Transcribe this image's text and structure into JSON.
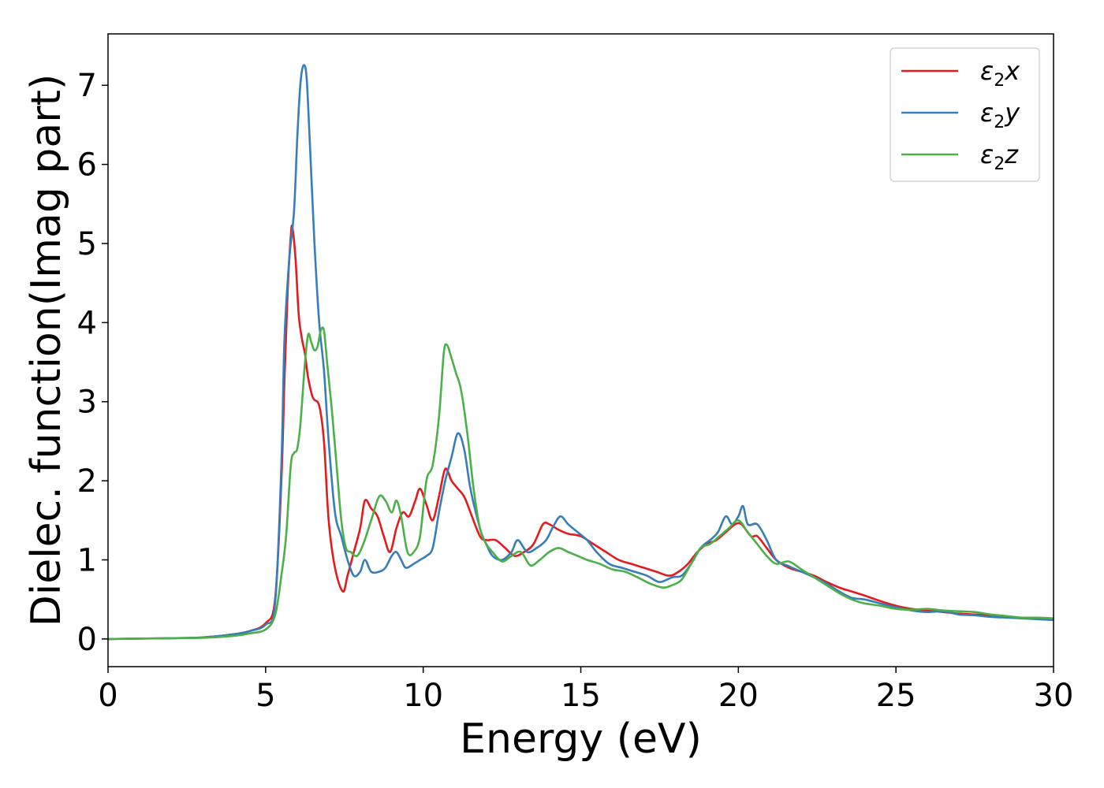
{
  "chart_data": {
    "type": "line",
    "title": "",
    "xlabel": "Energy (eV)",
    "ylabel": "Dielec. function(Imag part)",
    "xlim": [
      0,
      30
    ],
    "ylim": [
      -0.35,
      7.65
    ],
    "grid": false,
    "legend_position": "top-right",
    "x_ticks": [
      0,
      5,
      10,
      15,
      20,
      25,
      30
    ],
    "y_ticks": [
      0,
      1,
      2,
      3,
      4,
      5,
      6,
      7
    ],
    "series": [
      {
        "name": "ε2x",
        "legend": {
          "symbol": "ε",
          "sub": "2",
          "var": "x"
        },
        "color": "#e41a1c",
        "points": [
          [
            0,
            0.0
          ],
          [
            2,
            0.01
          ],
          [
            3,
            0.02
          ],
          [
            4,
            0.06
          ],
          [
            4.5,
            0.1
          ],
          [
            5,
            0.2
          ],
          [
            5.3,
            0.5
          ],
          [
            5.5,
            2.0
          ],
          [
            5.6,
            3.3
          ],
          [
            5.7,
            4.4
          ],
          [
            5.8,
            5.1
          ],
          [
            5.85,
            5.2
          ],
          [
            5.95,
            4.8
          ],
          [
            6.05,
            4.1
          ],
          [
            6.15,
            3.8
          ],
          [
            6.25,
            3.6
          ],
          [
            6.35,
            3.3
          ],
          [
            6.5,
            3.05
          ],
          [
            6.7,
            2.95
          ],
          [
            6.85,
            2.5
          ],
          [
            7.0,
            1.5
          ],
          [
            7.2,
            0.9
          ],
          [
            7.45,
            0.6
          ],
          [
            7.6,
            0.8
          ],
          [
            7.8,
            1.1
          ],
          [
            8.0,
            1.4
          ],
          [
            8.15,
            1.75
          ],
          [
            8.35,
            1.65
          ],
          [
            8.55,
            1.55
          ],
          [
            8.75,
            1.3
          ],
          [
            8.95,
            1.1
          ],
          [
            9.15,
            1.4
          ],
          [
            9.35,
            1.6
          ],
          [
            9.55,
            1.55
          ],
          [
            9.75,
            1.75
          ],
          [
            9.9,
            1.9
          ],
          [
            10.1,
            1.7
          ],
          [
            10.3,
            1.5
          ],
          [
            10.5,
            1.8
          ],
          [
            10.7,
            2.15
          ],
          [
            10.9,
            2.0
          ],
          [
            11.1,
            1.9
          ],
          [
            11.3,
            1.8
          ],
          [
            11.5,
            1.6
          ],
          [
            11.8,
            1.3
          ],
          [
            12.0,
            1.25
          ],
          [
            12.3,
            1.25
          ],
          [
            12.6,
            1.15
          ],
          [
            12.9,
            1.05
          ],
          [
            13.2,
            1.1
          ],
          [
            13.5,
            1.2
          ],
          [
            13.8,
            1.45
          ],
          [
            14.0,
            1.45
          ],
          [
            14.3,
            1.38
          ],
          [
            14.6,
            1.33
          ],
          [
            15.0,
            1.3
          ],
          [
            15.4,
            1.2
          ],
          [
            15.8,
            1.1
          ],
          [
            16.2,
            1.0
          ],
          [
            16.6,
            0.95
          ],
          [
            17.0,
            0.9
          ],
          [
            17.4,
            0.85
          ],
          [
            17.8,
            0.8
          ],
          [
            18.1,
            0.85
          ],
          [
            18.4,
            0.95
          ],
          [
            18.7,
            1.1
          ],
          [
            19.0,
            1.2
          ],
          [
            19.3,
            1.25
          ],
          [
            19.6,
            1.35
          ],
          [
            19.9,
            1.45
          ],
          [
            20.1,
            1.45
          ],
          [
            20.4,
            1.3
          ],
          [
            20.6,
            1.3
          ],
          [
            20.9,
            1.15
          ],
          [
            21.2,
            1.0
          ],
          [
            21.6,
            0.9
          ],
          [
            22.0,
            0.85
          ],
          [
            22.4,
            0.8
          ],
          [
            22.8,
            0.72
          ],
          [
            23.2,
            0.65
          ],
          [
            23.6,
            0.6
          ],
          [
            24.0,
            0.55
          ],
          [
            24.5,
            0.48
          ],
          [
            25.0,
            0.42
          ],
          [
            25.5,
            0.38
          ],
          [
            26.0,
            0.36
          ],
          [
            26.5,
            0.34
          ],
          [
            27.0,
            0.32
          ],
          [
            27.5,
            0.31
          ],
          [
            28.0,
            0.3
          ],
          [
            28.5,
            0.28
          ],
          [
            29.0,
            0.27
          ],
          [
            29.5,
            0.26
          ],
          [
            30.0,
            0.25
          ]
        ]
      },
      {
        "name": "ε2y",
        "legend": {
          "symbol": "ε",
          "sub": "2",
          "var": "y"
        },
        "color": "#377eb8",
        "points": [
          [
            0,
            0.0
          ],
          [
            2,
            0.01
          ],
          [
            3,
            0.02
          ],
          [
            4,
            0.06
          ],
          [
            4.5,
            0.1
          ],
          [
            5,
            0.18
          ],
          [
            5.3,
            0.45
          ],
          [
            5.5,
            2.2
          ],
          [
            5.6,
            3.8
          ],
          [
            5.75,
            4.8
          ],
          [
            5.9,
            5.4
          ],
          [
            6.0,
            6.3
          ],
          [
            6.1,
            7.0
          ],
          [
            6.2,
            7.25
          ],
          [
            6.3,
            7.1
          ],
          [
            6.4,
            6.3
          ],
          [
            6.55,
            5.0
          ],
          [
            6.7,
            4.0
          ],
          [
            6.85,
            3.4
          ],
          [
            7.0,
            2.5
          ],
          [
            7.2,
            1.6
          ],
          [
            7.4,
            1.3
          ],
          [
            7.6,
            1.0
          ],
          [
            7.8,
            0.8
          ],
          [
            8.0,
            0.85
          ],
          [
            8.15,
            1.0
          ],
          [
            8.35,
            0.85
          ],
          [
            8.6,
            0.85
          ],
          [
            8.8,
            0.9
          ],
          [
            9.0,
            1.05
          ],
          [
            9.15,
            1.1
          ],
          [
            9.3,
            1.0
          ],
          [
            9.45,
            0.9
          ],
          [
            9.7,
            0.95
          ],
          [
            9.9,
            1.0
          ],
          [
            10.1,
            1.05
          ],
          [
            10.3,
            1.15
          ],
          [
            10.5,
            1.6
          ],
          [
            10.7,
            2.0
          ],
          [
            10.9,
            2.3
          ],
          [
            11.1,
            2.6
          ],
          [
            11.3,
            2.4
          ],
          [
            11.5,
            1.9
          ],
          [
            11.8,
            1.4
          ],
          [
            12.0,
            1.2
          ],
          [
            12.2,
            1.05
          ],
          [
            12.5,
            1.0
          ],
          [
            12.8,
            1.1
          ],
          [
            13.0,
            1.25
          ],
          [
            13.3,
            1.1
          ],
          [
            13.6,
            1.15
          ],
          [
            13.9,
            1.25
          ],
          [
            14.1,
            1.4
          ],
          [
            14.35,
            1.55
          ],
          [
            14.6,
            1.45
          ],
          [
            14.9,
            1.35
          ],
          [
            15.2,
            1.25
          ],
          [
            15.5,
            1.1
          ],
          [
            15.9,
            0.95
          ],
          [
            16.3,
            0.9
          ],
          [
            16.7,
            0.85
          ],
          [
            17.1,
            0.8
          ],
          [
            17.5,
            0.72
          ],
          [
            17.9,
            0.78
          ],
          [
            18.2,
            0.8
          ],
          [
            18.5,
            0.95
          ],
          [
            18.8,
            1.15
          ],
          [
            19.1,
            1.25
          ],
          [
            19.35,
            1.35
          ],
          [
            19.6,
            1.55
          ],
          [
            19.8,
            1.45
          ],
          [
            20.0,
            1.55
          ],
          [
            20.15,
            1.68
          ],
          [
            20.3,
            1.45
          ],
          [
            20.6,
            1.45
          ],
          [
            20.9,
            1.25
          ],
          [
            21.2,
            1.0
          ],
          [
            21.6,
            0.92
          ],
          [
            22.0,
            0.85
          ],
          [
            22.4,
            0.78
          ],
          [
            22.8,
            0.7
          ],
          [
            23.2,
            0.6
          ],
          [
            23.6,
            0.52
          ],
          [
            24.0,
            0.5
          ],
          [
            24.5,
            0.45
          ],
          [
            25.0,
            0.4
          ],
          [
            25.5,
            0.36
          ],
          [
            26.0,
            0.34
          ],
          [
            26.5,
            0.35
          ],
          [
            27.0,
            0.31
          ],
          [
            27.5,
            0.3
          ],
          [
            28.0,
            0.28
          ],
          [
            28.5,
            0.27
          ],
          [
            29.0,
            0.26
          ],
          [
            29.5,
            0.25
          ],
          [
            30.0,
            0.24
          ]
        ]
      },
      {
        "name": "ε2z",
        "legend": {
          "symbol": "ε",
          "sub": "2",
          "var": "z"
        },
        "color": "#4daf4a",
        "points": [
          [
            0,
            0.0
          ],
          [
            2,
            0.01
          ],
          [
            3,
            0.015
          ],
          [
            4,
            0.04
          ],
          [
            4.5,
            0.07
          ],
          [
            5,
            0.12
          ],
          [
            5.3,
            0.3
          ],
          [
            5.5,
            0.8
          ],
          [
            5.65,
            1.3
          ],
          [
            5.8,
            2.2
          ],
          [
            5.9,
            2.35
          ],
          [
            6.0,
            2.4
          ],
          [
            6.1,
            2.7
          ],
          [
            6.25,
            3.5
          ],
          [
            6.35,
            3.85
          ],
          [
            6.45,
            3.75
          ],
          [
            6.55,
            3.65
          ],
          [
            6.65,
            3.7
          ],
          [
            6.75,
            3.9
          ],
          [
            6.85,
            3.9
          ],
          [
            6.95,
            3.5
          ],
          [
            7.1,
            2.9
          ],
          [
            7.25,
            2.2
          ],
          [
            7.4,
            1.5
          ],
          [
            7.55,
            1.15
          ],
          [
            7.7,
            1.1
          ],
          [
            7.9,
            1.05
          ],
          [
            8.1,
            1.2
          ],
          [
            8.35,
            1.5
          ],
          [
            8.6,
            1.8
          ],
          [
            8.8,
            1.75
          ],
          [
            9.0,
            1.6
          ],
          [
            9.15,
            1.75
          ],
          [
            9.3,
            1.55
          ],
          [
            9.5,
            1.1
          ],
          [
            9.7,
            1.1
          ],
          [
            9.9,
            1.3
          ],
          [
            10.1,
            2.0
          ],
          [
            10.3,
            2.2
          ],
          [
            10.5,
            2.8
          ],
          [
            10.65,
            3.6
          ],
          [
            10.75,
            3.72
          ],
          [
            10.9,
            3.55
          ],
          [
            11.05,
            3.35
          ],
          [
            11.2,
            3.15
          ],
          [
            11.4,
            2.6
          ],
          [
            11.6,
            1.9
          ],
          [
            11.8,
            1.4
          ],
          [
            12.0,
            1.2
          ],
          [
            12.2,
            1.1
          ],
          [
            12.5,
            0.98
          ],
          [
            12.8,
            1.05
          ],
          [
            13.1,
            1.1
          ],
          [
            13.4,
            0.93
          ],
          [
            13.7,
            1.0
          ],
          [
            14.0,
            1.1
          ],
          [
            14.3,
            1.15
          ],
          [
            14.6,
            1.1
          ],
          [
            14.9,
            1.05
          ],
          [
            15.2,
            1.0
          ],
          [
            15.6,
            0.95
          ],
          [
            16.0,
            0.88
          ],
          [
            16.4,
            0.85
          ],
          [
            16.8,
            0.78
          ],
          [
            17.2,
            0.7
          ],
          [
            17.6,
            0.65
          ],
          [
            17.9,
            0.68
          ],
          [
            18.2,
            0.75
          ],
          [
            18.5,
            0.95
          ],
          [
            18.8,
            1.15
          ],
          [
            19.1,
            1.2
          ],
          [
            19.4,
            1.3
          ],
          [
            19.7,
            1.4
          ],
          [
            20.0,
            1.5
          ],
          [
            20.3,
            1.35
          ],
          [
            20.6,
            1.2
          ],
          [
            20.9,
            1.05
          ],
          [
            21.2,
            0.95
          ],
          [
            21.6,
            0.98
          ],
          [
            22.0,
            0.88
          ],
          [
            22.4,
            0.78
          ],
          [
            22.8,
            0.68
          ],
          [
            23.2,
            0.58
          ],
          [
            23.6,
            0.5
          ],
          [
            24.0,
            0.45
          ],
          [
            24.5,
            0.42
          ],
          [
            25.0,
            0.38
          ],
          [
            25.5,
            0.37
          ],
          [
            26.0,
            0.38
          ],
          [
            26.5,
            0.36
          ],
          [
            27.0,
            0.35
          ],
          [
            27.5,
            0.34
          ],
          [
            28.0,
            0.31
          ],
          [
            28.5,
            0.29
          ],
          [
            29.0,
            0.27
          ],
          [
            29.5,
            0.27
          ],
          [
            30.0,
            0.26
          ]
        ]
      }
    ]
  }
}
